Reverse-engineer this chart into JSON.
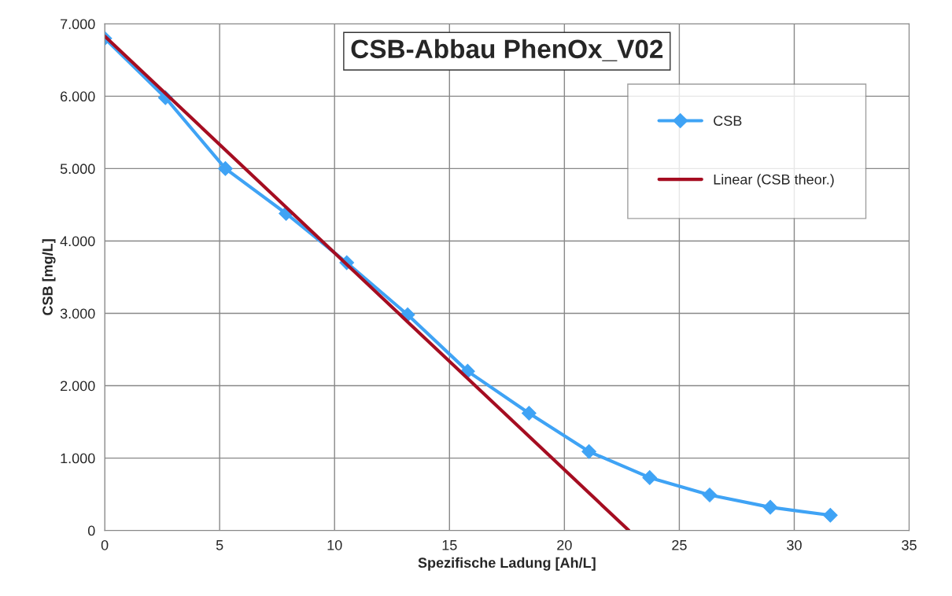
{
  "chart_data": {
    "type": "line",
    "title": "CSB-Abbau PhenOx_V02",
    "xlabel": "Spezifische Ladung [Ah/L]",
    "ylabel": "CSB [mg/L]",
    "series": [
      {
        "name": "CSB",
        "color": "#3fa3f5",
        "marker": "diamond",
        "x": [
          0,
          2.64,
          5.25,
          7.89,
          10.53,
          13.18,
          15.79,
          18.46,
          21.07,
          23.71,
          26.32,
          28.96,
          31.57
        ],
        "values": [
          6800,
          5980,
          5000,
          4380,
          3700,
          2980,
          2200,
          1620,
          1090,
          730,
          490,
          320,
          210
        ]
      },
      {
        "name": "Linear (CSB theor.)",
        "color": "#a50d21",
        "marker": "none",
        "x": [
          0,
          22.8
        ],
        "values": [
          6830,
          0
        ]
      }
    ],
    "xlim": [
      0,
      35
    ],
    "xticks": [
      0,
      5,
      10,
      15,
      20,
      25,
      30,
      35
    ],
    "ylim": [
      0,
      7000
    ],
    "yticks": [
      0,
      {
        "value": 1000,
        "label": "1.000"
      },
      {
        "value": 2000,
        "label": "2.000"
      },
      {
        "value": 3000,
        "label": "3.000"
      },
      {
        "value": 4000,
        "label": "4.000"
      },
      {
        "value": 5000,
        "label": "5.000"
      },
      {
        "value": 6000,
        "label": "6.000"
      },
      {
        "value": 7000,
        "label": "7.000"
      }
    ],
    "grid": true,
    "legend": "top right",
    "line_style": "solid"
  }
}
